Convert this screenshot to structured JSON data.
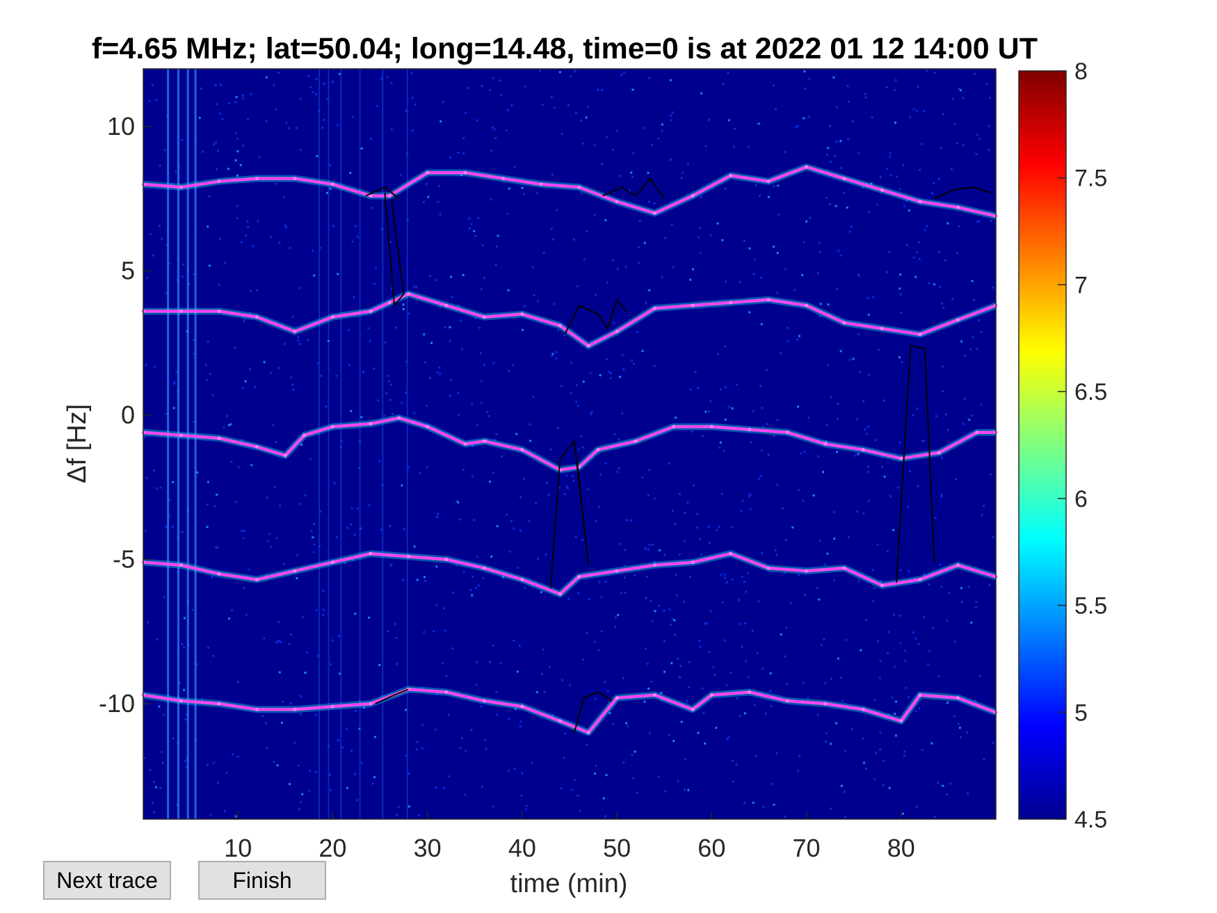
{
  "window": {
    "buttons": {
      "next_trace": "Next trace",
      "finish": "Finish"
    }
  },
  "chart_data": {
    "type": "heatmap",
    "title": "f=4.65 MHz;  lat=50.04; long=14.48, time=0 is at 2022 01 12 14:00 UT",
    "xlabel": "time (min)",
    "ylabel": "Δf [Hz]",
    "xlim": [
      0,
      90
    ],
    "ylim": [
      -14,
      12
    ],
    "x_ticks": [
      10,
      20,
      30,
      40,
      50,
      60,
      70,
      80
    ],
    "y_ticks": [
      10,
      5,
      0,
      -5,
      -10
    ],
    "colorbar": {
      "range": [
        4.5,
        8
      ],
      "ticks": [
        8,
        7.5,
        7,
        6.5,
        6,
        5.5,
        5,
        4.5
      ],
      "colormap": "jet"
    },
    "colors": {
      "background": "#00008f",
      "trace": "#ff40ff",
      "manual_trace": "#000000"
    },
    "series": [
      {
        "x": [
          0,
          4,
          8,
          12,
          16,
          20,
          24,
          26,
          30,
          34,
          38,
          42,
          46,
          50,
          54,
          58,
          62,
          66,
          70,
          74,
          78,
          82,
          86,
          90
        ],
        "y": [
          8.0,
          7.9,
          8.1,
          8.2,
          8.2,
          8.0,
          7.6,
          7.6,
          8.4,
          8.4,
          8.2,
          8.0,
          7.9,
          7.4,
          7.0,
          7.6,
          8.3,
          8.1,
          8.6,
          8.2,
          7.8,
          7.4,
          7.2,
          6.9
        ]
      },
      {
        "x": [
          0,
          4,
          8,
          12,
          16,
          20,
          24,
          26,
          28,
          32,
          36,
          40,
          44,
          47,
          50,
          54,
          58,
          62,
          66,
          70,
          74,
          78,
          82,
          86,
          90
        ],
        "y": [
          3.6,
          3.6,
          3.6,
          3.4,
          2.9,
          3.4,
          3.6,
          3.9,
          4.2,
          3.8,
          3.4,
          3.5,
          3.1,
          2.4,
          2.9,
          3.7,
          3.8,
          3.9,
          4.0,
          3.8,
          3.2,
          3.0,
          2.8,
          3.3,
          3.8
        ]
      },
      {
        "x": [
          0,
          4,
          8,
          12,
          15,
          17,
          20,
          24,
          27,
          30,
          34,
          36,
          40,
          44,
          46,
          48,
          52,
          56,
          60,
          64,
          68,
          72,
          76,
          80,
          84,
          88,
          90
        ],
        "y": [
          -0.6,
          -0.7,
          -0.8,
          -1.1,
          -1.4,
          -0.7,
          -0.4,
          -0.3,
          -0.1,
          -0.4,
          -1.0,
          -0.9,
          -1.2,
          -1.9,
          -1.8,
          -1.2,
          -0.9,
          -0.4,
          -0.4,
          -0.5,
          -0.6,
          -1.0,
          -1.2,
          -1.5,
          -1.3,
          -0.6,
          -0.6
        ]
      },
      {
        "x": [
          0,
          4,
          8,
          12,
          16,
          20,
          24,
          28,
          32,
          36,
          40,
          44,
          46,
          50,
          54,
          58,
          62,
          66,
          70,
          74,
          78,
          82,
          86,
          90
        ],
        "y": [
          -5.1,
          -5.2,
          -5.5,
          -5.7,
          -5.4,
          -5.1,
          -4.8,
          -4.9,
          -5.0,
          -5.3,
          -5.7,
          -6.2,
          -5.6,
          -5.4,
          -5.2,
          -5.1,
          -4.8,
          -5.3,
          -5.4,
          -5.3,
          -5.9,
          -5.7,
          -5.2,
          -5.6
        ]
      },
      {
        "x": [
          0,
          4,
          8,
          12,
          16,
          20,
          24,
          28,
          32,
          36,
          40,
          44,
          47,
          50,
          54,
          58,
          60,
          64,
          68,
          72,
          76,
          80,
          82,
          86,
          90
        ],
        "y": [
          -9.7,
          -9.9,
          -10.0,
          -10.2,
          -10.2,
          -10.1,
          -10.0,
          -9.5,
          -9.6,
          -9.9,
          -10.1,
          -10.6,
          -11.0,
          -9.8,
          -9.7,
          -10.2,
          -9.7,
          -9.6,
          -9.9,
          -10.0,
          -10.2,
          -10.6,
          -9.7,
          -9.8,
          -10.3
        ]
      }
    ]
  }
}
